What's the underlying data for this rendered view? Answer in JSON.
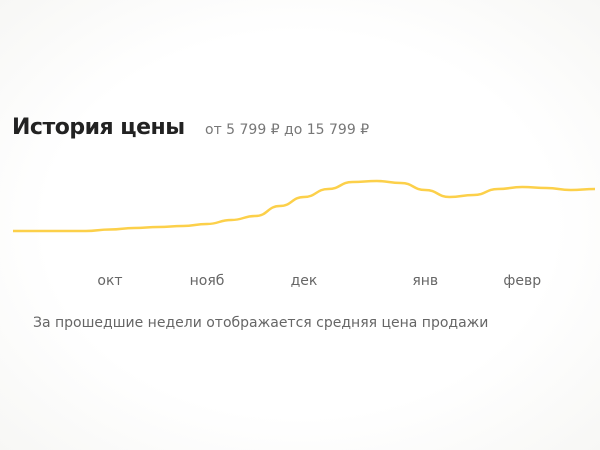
{
  "chart_data": {
    "type": "line",
    "title": "История цены",
    "subtitle": "от 5 799 ₽ до 15 799 ₽",
    "note": "За прошедшие недели отображается средняя цена продажи",
    "categories": [
      null,
      null,
      null,
      null,
      "окт",
      null,
      null,
      null,
      "нояб",
      null,
      null,
      null,
      "дек",
      null,
      null,
      null,
      null,
      "янв",
      null,
      null,
      null,
      "февр",
      null,
      null,
      null
    ],
    "values": [
      5799,
      5799,
      5799,
      5799,
      6099,
      6399,
      6599,
      6799,
      7199,
      7999,
      8799,
      10799,
      12599,
      14199,
      15599,
      15799,
      15399,
      13999,
      12599,
      12999,
      14199,
      14599,
      14399,
      13999,
      14199
    ],
    "color": "#fcd04a"
  }
}
